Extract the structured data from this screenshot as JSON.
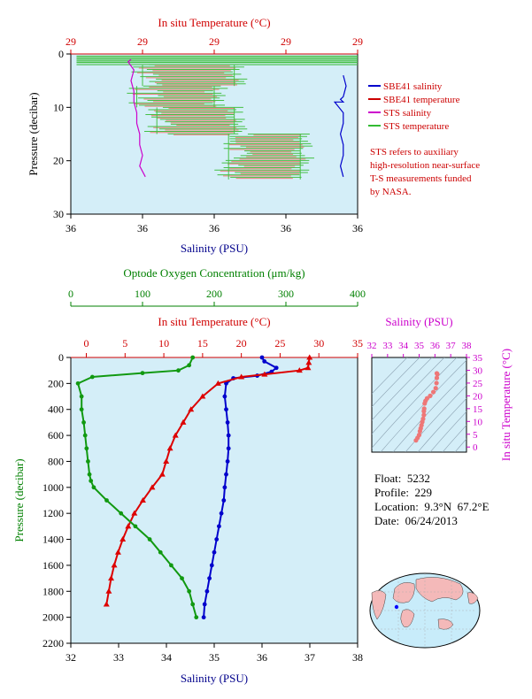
{
  "chart_data": [
    {
      "type": "line",
      "top_axis": {
        "label": "In situ Temperature (°C)",
        "ticks": [
          "29",
          "29",
          "29",
          "29",
          "29"
        ],
        "color": "#d00000"
      },
      "bottom_axis": {
        "label": "Salinity (PSU)",
        "ticks": [
          "36",
          "36",
          "36",
          "36",
          "36"
        ],
        "color": "#00008b"
      },
      "left_axis": {
        "label": "Pressure (decibar)",
        "ticks": [
          "0",
          "10",
          "20",
          "30"
        ],
        "ylim": [
          0,
          30
        ]
      },
      "legend": {
        "placement": "right",
        "entries": [
          {
            "name": "SBE41 salinity",
            "color": "#0000cc"
          },
          {
            "name": "SBE41 temperature",
            "color": "#cc0000"
          },
          {
            "name": "STS salinity",
            "color": "#cc00cc"
          },
          {
            "name": "STS temperature",
            "color": "#33bb33"
          }
        ]
      },
      "note": [
        "STS refers to auxiliary",
        "high-resolution near-surface",
        "T-S measurements funded",
        "by NASA."
      ],
      "series": [
        {
          "name": "STS salinity",
          "color": "#cc00cc",
          "x": [
            0.21,
            0.2,
            0.22,
            0.21,
            0.22,
            0.22,
            0.23,
            0.23,
            0.24,
            0.24,
            0.25,
            0.24,
            0.25,
            0.26
          ],
          "y": [
            1,
            1.5,
            3,
            5,
            7,
            9,
            11,
            13,
            15,
            17,
            19,
            21,
            22,
            23
          ]
        },
        {
          "name": "SBE41 salinity",
          "color": "#0000cc",
          "x": [
            0.95,
            0.96,
            0.95,
            0.94,
            0.95,
            0.92,
            0.95,
            0.95,
            0.94,
            0.95,
            0.95,
            0.94,
            0.95
          ],
          "y": [
            4,
            6,
            8,
            8.5,
            9,
            9,
            11,
            13,
            15,
            17,
            19,
            21,
            23
          ]
        },
        {
          "name": "STS temperature",
          "color": "#33bb33",
          "band": true
        },
        {
          "name": "SBE41 temperature",
          "color": "#cc0000",
          "band": true
        }
      ]
    },
    {
      "type": "line",
      "top_axis_oxygen": {
        "label": "Optode Oxygen Concentration (μm/kg)",
        "ticks": [
          "0",
          "100",
          "200",
          "300",
          "400"
        ],
        "xlim": [
          0,
          400
        ],
        "color": "#008000"
      },
      "top_axis_temperature": {
        "label": "In situ Temperature (°C)",
        "ticks": [
          "0",
          "5",
          "10",
          "15",
          "20",
          "25",
          "30",
          "35"
        ],
        "xlim": [
          -2,
          35
        ],
        "color": "#d00000"
      },
      "bottom_axis": {
        "label": "Salinity (PSU)",
        "ticks": [
          "32",
          "33",
          "34",
          "35",
          "36",
          "37",
          "38"
        ],
        "xlim": [
          32,
          38
        ],
        "color": "#00008b"
      },
      "left_axis": {
        "label": "Pressure (decibar)",
        "ticks": [
          "0",
          "200",
          "400",
          "600",
          "800",
          "1000",
          "1200",
          "1400",
          "1600",
          "1800",
          "2000",
          "2200"
        ],
        "ylim": [
          0,
          2200
        ],
        "color": "#008000"
      },
      "series": [
        {
          "name": "Salinity",
          "color": "#0000cc",
          "axis": "salinity",
          "x": [
            36.0,
            36.05,
            36.3,
            36.2,
            35.9,
            35.4,
            35.25,
            35.22,
            35.25,
            35.28,
            35.3,
            35.3,
            35.28,
            35.25,
            35.22,
            35.2,
            35.15,
            35.1,
            35.05,
            35.0,
            34.95,
            34.9,
            34.85,
            34.8,
            34.78
          ],
          "y": [
            0,
            30,
            80,
            110,
            140,
            160,
            200,
            300,
            400,
            500,
            600,
            700,
            800,
            900,
            1000,
            1100,
            1200,
            1300,
            1400,
            1500,
            1600,
            1700,
            1800,
            1900,
            2000
          ]
        },
        {
          "name": "Temperature",
          "color": "#dd0000",
          "axis": "temperature",
          "x": [
            28.8,
            28.7,
            28.6,
            27.5,
            23.0,
            20.0,
            17.0,
            15.0,
            13.5,
            12.5,
            11.5,
            10.8,
            10.3,
            9.8,
            8.5,
            7.3,
            6.2,
            5.4,
            4.7,
            4.1,
            3.6,
            3.2,
            2.9,
            2.6
          ],
          "y": [
            0,
            40,
            80,
            100,
            130,
            150,
            200,
            300,
            400,
            500,
            600,
            700,
            800,
            900,
            1000,
            1100,
            1200,
            1300,
            1400,
            1500,
            1600,
            1700,
            1800,
            1900
          ]
        },
        {
          "name": "Oxygen",
          "color": "#119911",
          "axis": "oxygen",
          "x": [
            170,
            165,
            150,
            100,
            30,
            10,
            15,
            15,
            18,
            20,
            22,
            24,
            26,
            28,
            32,
            50,
            70,
            90,
            110,
            125,
            140,
            155,
            165,
            170,
            175
          ],
          "y": [
            0,
            60,
            100,
            120,
            150,
            200,
            300,
            400,
            500,
            600,
            700,
            800,
            900,
            950,
            1000,
            1100,
            1200,
            1300,
            1400,
            1500,
            1600,
            1700,
            1800,
            1900,
            2000
          ]
        }
      ]
    },
    {
      "type": "scatter",
      "top_axis": {
        "label": "Salinity (PSU)",
        "ticks": [
          "32",
          "33",
          "34",
          "35",
          "36",
          "37",
          "38"
        ],
        "xlim": [
          32,
          38
        ],
        "color": "#cc00cc"
      },
      "right_axis": {
        "label": "In situ Temperature (°C)",
        "ticks": [
          "0",
          "5",
          "10",
          "15",
          "20",
          "25",
          "30",
          "35"
        ],
        "ylim": [
          -2,
          35
        ],
        "color": "#cc00cc"
      },
      "series": [
        {
          "name": "T-S",
          "color": "#ee7777",
          "x": [
            34.8,
            34.9,
            35.0,
            35.05,
            35.1,
            35.15,
            35.2,
            35.25,
            35.3,
            35.3,
            35.32,
            35.35,
            35.4,
            35.5,
            35.7,
            35.9,
            36.05,
            36.1,
            36.12,
            36.15,
            36.12
          ],
          "y": [
            2.6,
            3.6,
            4.7,
            6.2,
            7.3,
            8.5,
            9.8,
            11.0,
            12.5,
            14,
            15,
            17,
            18,
            19,
            20,
            21.5,
            23,
            25,
            27,
            28.5,
            28.8
          ]
        }
      ]
    }
  ],
  "info": {
    "float": "Float:  5232",
    "profile": "Profile:  229",
    "location": "Location:  9.3°N  67.2°E",
    "date": "Date:  06/24/2013"
  },
  "colors": {
    "plot_bg": "#d4eef8",
    "map_land": "#f4b9b9",
    "map_ocean": "#c8ecfa"
  }
}
